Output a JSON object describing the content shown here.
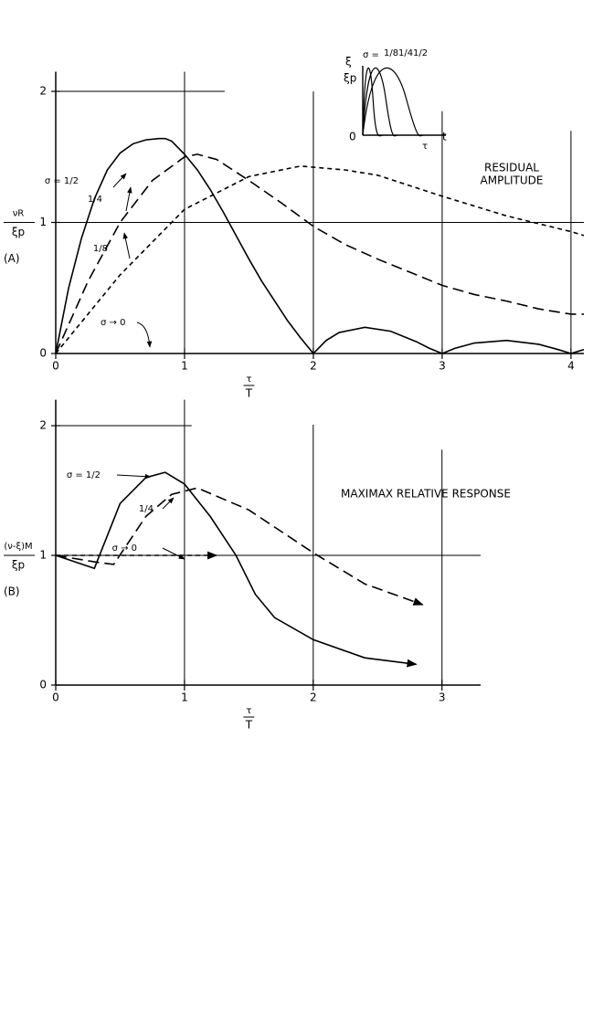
{
  "chart_data": [
    {
      "type": "line",
      "panel_label": "(A)",
      "y_label_top": "νR",
      "y_label_bottom": "ξp",
      "x_label_top": "τ",
      "x_label_bottom": "T",
      "annotation": [
        "RESIDUAL",
        "AMPLITUDE"
      ],
      "zero_note": "σ → 0",
      "xlim": [
        0,
        4.1
      ],
      "ylim": [
        0,
        2.15
      ],
      "xticks": [
        0,
        1,
        2,
        3,
        4
      ],
      "yticks": [
        0,
        1,
        2
      ],
      "grid": true,
      "color": "#000000",
      "series": [
        {
          "name": "σ = 1/2",
          "dash": "solid",
          "x": [
            0,
            0.1,
            0.2,
            0.3,
            0.4,
            0.5,
            0.6,
            0.7,
            0.8,
            0.85,
            0.9,
            1.0,
            1.1,
            1.2,
            1.3,
            1.4,
            1.5,
            1.6,
            1.7,
            1.8,
            1.9,
            2.0,
            2.1,
            2.2,
            2.4,
            2.6,
            2.8,
            2.9,
            3.0,
            3.1,
            3.25,
            3.5,
            3.75,
            3.9,
            4.0,
            4.1
          ],
          "values": [
            0,
            0.5,
            0.88,
            1.18,
            1.4,
            1.53,
            1.6,
            1.63,
            1.64,
            1.64,
            1.62,
            1.52,
            1.4,
            1.25,
            1.08,
            0.9,
            0.72,
            0.55,
            0.4,
            0.25,
            0.12,
            0,
            0.1,
            0.16,
            0.2,
            0.17,
            0.09,
            0.04,
            0,
            0.04,
            0.08,
            0.1,
            0.07,
            0.03,
            0,
            0.03
          ]
        },
        {
          "name": "1/4",
          "dash": "long",
          "x": [
            0,
            0.25,
            0.5,
            0.75,
            1.0,
            1.1,
            1.25,
            1.5,
            1.75,
            2.0,
            2.25,
            2.5,
            2.75,
            3.0,
            3.25,
            3.5,
            3.75,
            4.0,
            4.1
          ],
          "values": [
            0,
            0.55,
            1.0,
            1.32,
            1.5,
            1.52,
            1.48,
            1.32,
            1.15,
            0.97,
            0.83,
            0.72,
            0.62,
            0.52,
            0.45,
            0.4,
            0.34,
            0.3,
            0.3
          ]
        },
        {
          "name": "1/8",
          "dash": "short",
          "x": [
            0,
            0.5,
            1.0,
            1.5,
            1.9,
            2.25,
            2.5,
            3.0,
            3.5,
            4.0,
            4.1
          ],
          "values": [
            0,
            0.6,
            1.1,
            1.35,
            1.43,
            1.4,
            1.36,
            1.2,
            1.05,
            0.93,
            0.9
          ]
        }
      ],
      "inset": {
        "y_label_top": "ξ",
        "y_label_bottom": "ξp",
        "sigma": "σ =",
        "fractions": [
          "1/8",
          "1/4",
          "1/2"
        ],
        "origin": "0",
        "tau": "τ",
        "t": "t"
      }
    },
    {
      "type": "line",
      "panel_label": "(B)",
      "y_label_top": "(ν-ξ)M",
      "y_label_bottom": "ξp",
      "x_label_top": "τ",
      "x_label_bottom": "T",
      "annotation": [
        "MAXIMAX RELATIVE RESPONSE"
      ],
      "xlim": [
        0,
        3.3
      ],
      "ylim": [
        0,
        2.2
      ],
      "xticks": [
        0,
        1,
        2,
        3
      ],
      "yticks": [
        0,
        1,
        2
      ],
      "grid": true,
      "color": "#000000",
      "series": [
        {
          "name": "σ = 1/2",
          "dash": "solid",
          "x": [
            0,
            0.3,
            0.5,
            0.7,
            0.85,
            1.0,
            1.2,
            1.4,
            1.55,
            1.7,
            2.0,
            2.4,
            2.8
          ],
          "values": [
            1,
            0.9,
            1.4,
            1.6,
            1.64,
            1.55,
            1.3,
            1.0,
            0.7,
            0.52,
            0.35,
            0.21,
            0.16
          ]
        },
        {
          "name": "1/4",
          "dash": "long",
          "x": [
            0,
            0.3,
            0.45,
            0.7,
            0.9,
            1.1,
            1.5,
            2.0,
            2.4,
            2.85
          ],
          "values": [
            1,
            0.95,
            0.93,
            1.3,
            1.47,
            1.52,
            1.35,
            1.02,
            0.78,
            0.62
          ]
        },
        {
          "name": "σ → 0",
          "dash": "short",
          "x": [
            0,
            1.25
          ],
          "values": [
            1,
            1
          ]
        }
      ]
    }
  ]
}
